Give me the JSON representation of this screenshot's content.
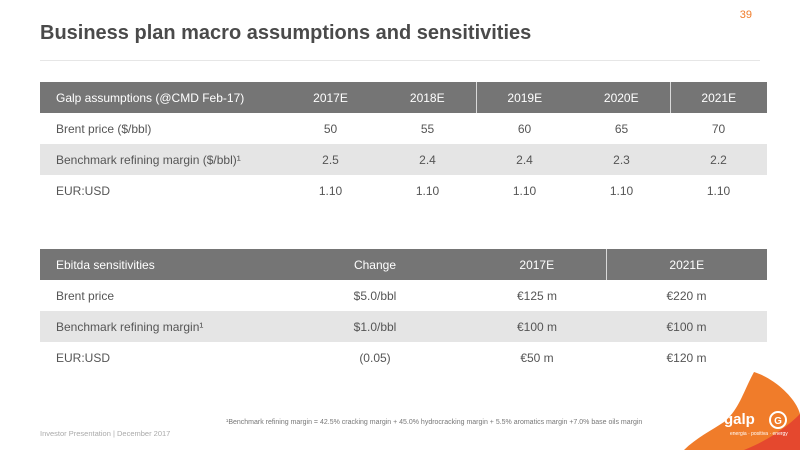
{
  "page_number": "39",
  "title": "Business plan macro assumptions and sensitivities",
  "assumptions": {
    "headers": [
      "Galp assumptions (@CMD Feb-17)",
      "2017E",
      "2018E",
      "2019E",
      "2020E",
      "2021E"
    ],
    "rows": [
      [
        "Brent price ($/bbl)",
        "50",
        "55",
        "60",
        "65",
        "70"
      ],
      [
        "Benchmark refining margin ($/bbl)¹",
        "2.5",
        "2.4",
        "2.4",
        "2.3",
        "2.2"
      ],
      [
        "EUR:USD",
        "1.10",
        "1.10",
        "1.10",
        "1.10",
        "1.10"
      ]
    ]
  },
  "sensitivities": {
    "headers": [
      "Ebitda sensitivities",
      "Change",
      "2017E",
      "2021E"
    ],
    "rows": [
      [
        "Brent price",
        "$5.0/bbl",
        "€125 m",
        "€220 m"
      ],
      [
        "Benchmark refining margin¹",
        "$1.0/bbl",
        "€100 m",
        "€100 m"
      ],
      [
        "EUR:USD",
        "(0.05)",
        "€50 m",
        "€120 m"
      ]
    ]
  },
  "footnote": "¹Benchmark refining margin = 42.5% cracking margin + 45.0% hydrocracking margin + 5.5% aromatics margin +7.0% base oils margin",
  "footer": "Investor Presentation | December 2017",
  "logo": {
    "name": "galp",
    "tagline": "energia · positiva · energy",
    "colors": {
      "primary": "#f07c2a",
      "secondary": "#e5482e"
    }
  },
  "colors": {
    "accent": "#f07c2a",
    "header_bg": "#757575",
    "shaded_row": "#e5e5e5",
    "title": "#4a4a4a"
  }
}
